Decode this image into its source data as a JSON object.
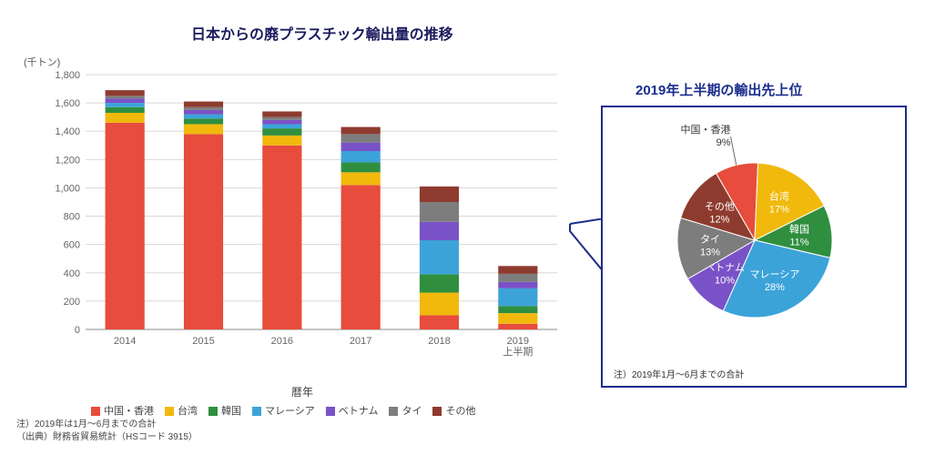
{
  "bar_chart": {
    "type": "stacked-bar",
    "title": "日本からの廃プラスチック輸出量の推移",
    "y_unit": "(千トン)",
    "x_label": "暦年",
    "ylim": [
      0,
      1800
    ],
    "ytick_step": 200,
    "categories": [
      "2014",
      "2015",
      "2016",
      "2017",
      "2018",
      "2019\n上半期"
    ],
    "series": [
      {
        "name": "中国・香港",
        "color": "#e74c3c"
      },
      {
        "name": "台湾",
        "color": "#f1b90c"
      },
      {
        "name": "韓国",
        "color": "#2f8f3f"
      },
      {
        "name": "マレーシア",
        "color": "#3ca3d9"
      },
      {
        "name": "ベトナム",
        "color": "#7a52c7"
      },
      {
        "name": "タイ",
        "color": "#7d7d7d"
      },
      {
        "name": "その他",
        "color": "#8e3b2f"
      }
    ],
    "data": [
      [
        1460,
        70,
        40,
        30,
        30,
        20,
        40
      ],
      [
        1380,
        70,
        40,
        30,
        30,
        20,
        40
      ],
      [
        1300,
        70,
        50,
        30,
        30,
        20,
        40
      ],
      [
        1020,
        90,
        70,
        80,
        60,
        60,
        50
      ],
      [
        100,
        160,
        130,
        240,
        130,
        140,
        110
      ],
      [
        40,
        75,
        50,
        125,
        45,
        58,
        55
      ]
    ],
    "bar_width": 0.5,
    "grid_color": "#d8d8d8",
    "background": "#ffffff"
  },
  "pie_chart": {
    "type": "pie",
    "title": "2019年上半期の輸出先上位",
    "note": "注）2019年1月～6月までの合計",
    "slices": [
      {
        "name": "中国・香港",
        "pct": 9,
        "color": "#e74c3c",
        "label_inside": false
      },
      {
        "name": "台湾",
        "pct": 17,
        "color": "#f1b90c",
        "label_inside": true
      },
      {
        "name": "韓国",
        "pct": 11,
        "color": "#2f8f3f",
        "label_inside": true
      },
      {
        "name": "マレーシア",
        "pct": 28,
        "color": "#3ca3d9",
        "label_inside": true
      },
      {
        "name": "ベトナム",
        "pct": 10,
        "color": "#7a52c7",
        "label_inside": true
      },
      {
        "name": "タイ",
        "pct": 13,
        "color": "#7d7d7d",
        "label_inside": true
      },
      {
        "name": "その他",
        "pct": 12,
        "color": "#8e3b2f",
        "label_inside": true
      }
    ],
    "stroke": "#ffffff"
  },
  "notes": {
    "line1": "注）2019年は1月～6月までの合計",
    "line2": "（出典）財務省貿易統計（HSコード 3915）"
  }
}
